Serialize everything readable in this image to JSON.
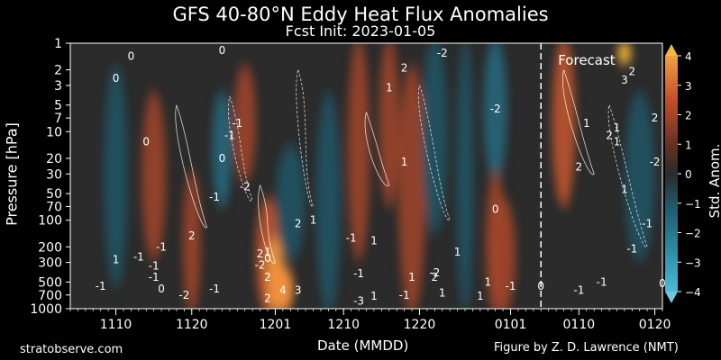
{
  "header": {
    "title": "GFS 40-80°N Eddy Heat Flux Anomalies",
    "subtitle": "Fcst Init: 2023-01-05"
  },
  "footer": {
    "left": "stratobserve.com",
    "right": "Figure by Z. D. Lawrence (NMT)"
  },
  "chart_data": {
    "type": "heatmap",
    "title": "GFS 40-80°N Eddy Heat Flux Anomalies",
    "subtitle": "Fcst Init: 2023-01-05",
    "xlabel": "Date (MMDD)",
    "ylabel": "Pressure [hPa]",
    "x_ticks": [
      "1110",
      "1120",
      "1201",
      "1210",
      "1220",
      "0101",
      "0110",
      "0120"
    ],
    "y_ticks": [
      1,
      2,
      3,
      5,
      7,
      10,
      20,
      30,
      50,
      70,
      100,
      200,
      300,
      500,
      700,
      1000
    ],
    "y_scale": "log",
    "y_inverted": true,
    "colorbar": {
      "label": "Std. Anom.",
      "ticks": [
        "4",
        "3",
        "2",
        "1",
        "0",
        "−1",
        "−2",
        "−3",
        "−4"
      ],
      "range": [
        -4,
        4
      ],
      "colormap": "diverging teal-to-orange",
      "cold_color": "#1a6f86",
      "warm_color": "#c8502a",
      "extend": "both"
    },
    "forecast_label": "Forecast",
    "forecast_start": "0105",
    "grid": false,
    "contour_labels": [
      {
        "text": "0",
        "date": "1112",
        "p": 1.4
      },
      {
        "text": "0",
        "date": "1124",
        "p": 1.2
      },
      {
        "text": "0",
        "date": "1110",
        "p": 2.5
      },
      {
        "text": "0",
        "date": "1114",
        "p": 13
      },
      {
        "text": "0",
        "date": "1124",
        "p": 20
      },
      {
        "text": "-1",
        "date": "1126",
        "p": 8
      },
      {
        "text": "-1",
        "date": "1125",
        "p": 11
      },
      {
        "text": "-2",
        "date": "1127",
        "p": 42
      },
      {
        "text": "-1",
        "date": "1123",
        "p": 55
      },
      {
        "text": "2",
        "date": "1120",
        "p": 150
      },
      {
        "text": "-1",
        "date": "1116",
        "p": 200
      },
      {
        "text": "-1",
        "date": "1115",
        "p": 330
      },
      {
        "text": "-1",
        "date": "1113",
        "p": 260
      },
      {
        "text": "1",
        "date": "1110",
        "p": 280
      },
      {
        "text": "-1",
        "date": "1108",
        "p": 560
      },
      {
        "text": "-1",
        "date": "1115",
        "p": 440
      },
      {
        "text": "0",
        "date": "1116",
        "p": 600
      },
      {
        "text": "-1",
        "date": "1123",
        "p": 600
      },
      {
        "text": "-2",
        "date": "1119",
        "p": 700
      },
      {
        "text": "2",
        "date": "1129",
        "p": 240
      },
      {
        "text": "0",
        "date": "1130",
        "p": 270
      },
      {
        "text": "-2",
        "date": "1129",
        "p": 320
      },
      {
        "text": "2",
        "date": "1204",
        "p": 110
      },
      {
        "text": "1",
        "date": "1206",
        "p": 100
      },
      {
        "text": "1",
        "date": "1200",
        "p": 230
      },
      {
        "text": "2",
        "date": "1130",
        "p": 440
      },
      {
        "text": "4",
        "date": "1202",
        "p": 620
      },
      {
        "text": "3",
        "date": "1204",
        "p": 620
      },
      {
        "text": "2",
        "date": "1130",
        "p": 760
      },
      {
        "text": "-3",
        "date": "1212",
        "p": 820
      },
      {
        "text": "-1",
        "date": "1211",
        "p": 160
      },
      {
        "text": "2",
        "date": "1218",
        "p": 1.9
      },
      {
        "text": "-2",
        "date": "1223",
        "p": 1.3
      },
      {
        "text": "1",
        "date": "1216",
        "p": 3.2
      },
      {
        "text": "1",
        "date": "1218",
        "p": 22
      },
      {
        "text": "1",
        "date": "1214",
        "p": 170
      },
      {
        "text": "1",
        "date": "1219",
        "p": 440
      },
      {
        "text": "-1",
        "date": "1212",
        "p": 400
      },
      {
        "text": "-2",
        "date": "1222",
        "p": 390
      },
      {
        "text": "2",
        "date": "1222",
        "p": 440
      },
      {
        "text": "1",
        "date": "1225",
        "p": 230
      },
      {
        "text": "1",
        "date": "1223",
        "p": 660
      },
      {
        "text": "1",
        "date": "1214",
        "p": 720
      },
      {
        "text": "1",
        "date": "1228",
        "p": 720
      },
      {
        "text": "-1",
        "date": "1218",
        "p": 700
      },
      {
        "text": "-2",
        "date": "1230",
        "p": 5.5
      },
      {
        "text": "0",
        "date": "1230",
        "p": 75
      },
      {
        "text": "-1",
        "date": "0101",
        "p": 560
      },
      {
        "text": "1",
        "date": "1229",
        "p": 500
      },
      {
        "text": "2",
        "date": "0117",
        "p": 2.1
      },
      {
        "text": "3",
        "date": "0116",
        "p": 2.6
      },
      {
        "text": "1",
        "date": "0111",
        "p": 8
      },
      {
        "text": "1",
        "date": "0115",
        "p": 9
      },
      {
        "text": "2",
        "date": "0114",
        "p": 11
      },
      {
        "text": "1",
        "date": "0115",
        "p": 13
      },
      {
        "text": "2",
        "date": "0120",
        "p": 7
      },
      {
        "text": "2",
        "date": "0110",
        "p": 25
      },
      {
        "text": "1",
        "date": "0116",
        "p": 45
      },
      {
        "text": "-2",
        "date": "0120",
        "p": 22
      },
      {
        "text": "-1",
        "date": "0117",
        "p": 210
      },
      {
        "text": "-1",
        "date": "0119",
        "p": 110
      },
      {
        "text": "-1",
        "date": "0113",
        "p": 500
      },
      {
        "text": "-1",
        "date": "0110",
        "p": 620
      },
      {
        "text": "0",
        "date": "0121",
        "p": 520
      },
      {
        "text": "0",
        "date": "0105",
        "p": 560
      }
    ]
  }
}
